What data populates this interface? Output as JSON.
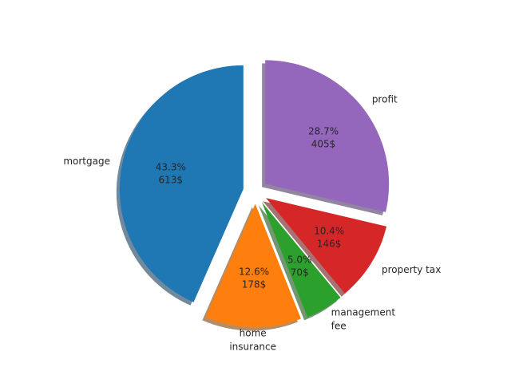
{
  "chart_data": {
    "type": "pie",
    "title": "",
    "start_angle_deg": 90,
    "direction": "counterclockwise",
    "shadow": true,
    "slices": [
      {
        "label": "mortgage",
        "label_lines": [
          "mortgage"
        ],
        "value": 613,
        "percent_text": "43.3%",
        "value_text": "613$",
        "color": "#1f77b4",
        "explode": 0.1
      },
      {
        "label": "home insurance",
        "label_lines": [
          "home",
          "insurance"
        ],
        "value": 178,
        "percent_text": "12.6%",
        "value_text": "178$",
        "color": "#ff7f0e",
        "explode": 0.1
      },
      {
        "label": "management fee",
        "label_lines": [
          "management",
          "fee"
        ],
        "value": 70,
        "percent_text": "5.0%",
        "value_text": "70$",
        "color": "#2ca02c",
        "explode": 0.1
      },
      {
        "label": "property tax",
        "label_lines": [
          "property tax"
        ],
        "value": 146,
        "percent_text": "10.4%",
        "value_text": "146$",
        "color": "#d62728",
        "explode": 0.1
      },
      {
        "label": "profit",
        "label_lines": [
          "profit"
        ],
        "value": 405,
        "percent_text": "28.7%",
        "value_text": "405$",
        "color": "#9467bd",
        "explode": 0.1
      }
    ]
  }
}
